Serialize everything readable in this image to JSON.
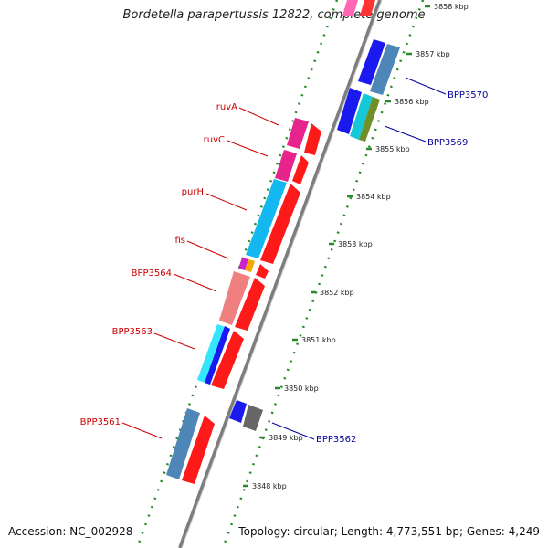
{
  "title": "Bordetella parapertussis 12822, complete genome",
  "accession": "Accession: NC_002928",
  "topology": "Topology: circular; Length: 4,773,551 bp; Genes: 4,249",
  "colors": {
    "backbone": "#8c8c8c",
    "ticks": "#2a8a2a",
    "label_left": "#cc0000",
    "label_right": "#000099"
  },
  "kbp_labels": [
    "3858 kbp",
    "3857 kbp",
    "3856 kbp",
    "3855 kbp",
    "3854 kbp",
    "3853 kbp",
    "3852 kbp",
    "3851 kbp",
    "3850 kbp",
    "3849 kbp",
    "3848 kbp"
  ],
  "gene_labels_left": [
    "ruvA",
    "ruvC",
    "purH",
    "fis",
    "BPP3564",
    "BPP3563",
    "BPP3561"
  ],
  "gene_labels_right": [
    "BPP3570",
    "BPP3569",
    "BPP3562"
  ]
}
